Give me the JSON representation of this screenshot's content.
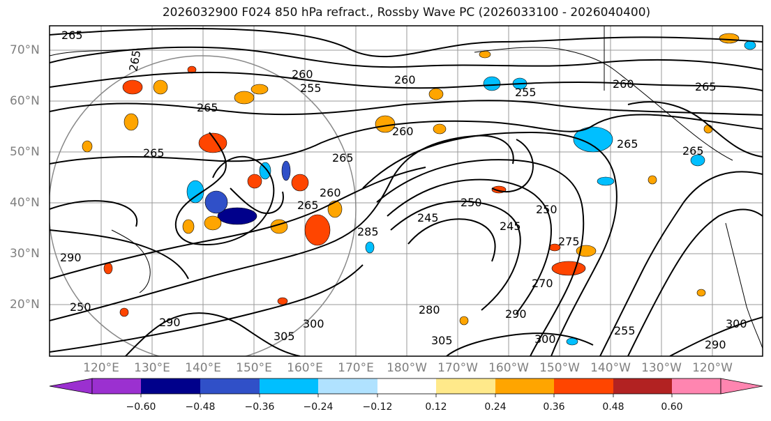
{
  "title": "2026032900 F024 850 hPa refract., Rossby Wave PC (2026033100 - 2026040400)",
  "latitude_labels": [
    "70°N",
    "60°N",
    "50°N",
    "40°N",
    "30°N",
    "20°N"
  ],
  "longitude_labels": [
    "120°E",
    "130°E",
    "140°E",
    "150°E",
    "160°E",
    "170°E",
    "180°W",
    "170°W",
    "160°W",
    "150°W",
    "140°W",
    "130°W",
    "120°W"
  ],
  "colorbar": {
    "ticks": [
      "−0.60",
      "−0.48",
      "−0.36",
      "−0.24",
      "−0.12",
      "0.12",
      "0.24",
      "0.36",
      "0.48",
      "0.60"
    ],
    "colors": [
      "#9b30d0",
      "#00008b",
      "#3050c8",
      "#00bfff",
      "#b0e2ff",
      "#ffffff",
      "#ffe98a",
      "#ffa500",
      "#ff4500",
      "#b22222",
      "#ff85b0"
    ]
  },
  "contour_labels": {
    "a": "265",
    "b": "265",
    "c": "260",
    "d": "255",
    "e": "260",
    "f": "255",
    "g": "260",
    "h": "265",
    "i": "265",
    "j": "265",
    "k": "260",
    "l": "265",
    "m": "265",
    "n": "265",
    "o": "260",
    "p": "245",
    "q": "250",
    "r": "245",
    "s": "250",
    "t": "285",
    "u": "275",
    "v": "270",
    "w": "290",
    "x": "290",
    "y": "290",
    "z": "300",
    "aa": "305",
    "ab": "300",
    "ac": "305",
    "ad": "280",
    "ae": "290",
    "af": "300",
    "ag": "250",
    "ah": "255"
  }
}
